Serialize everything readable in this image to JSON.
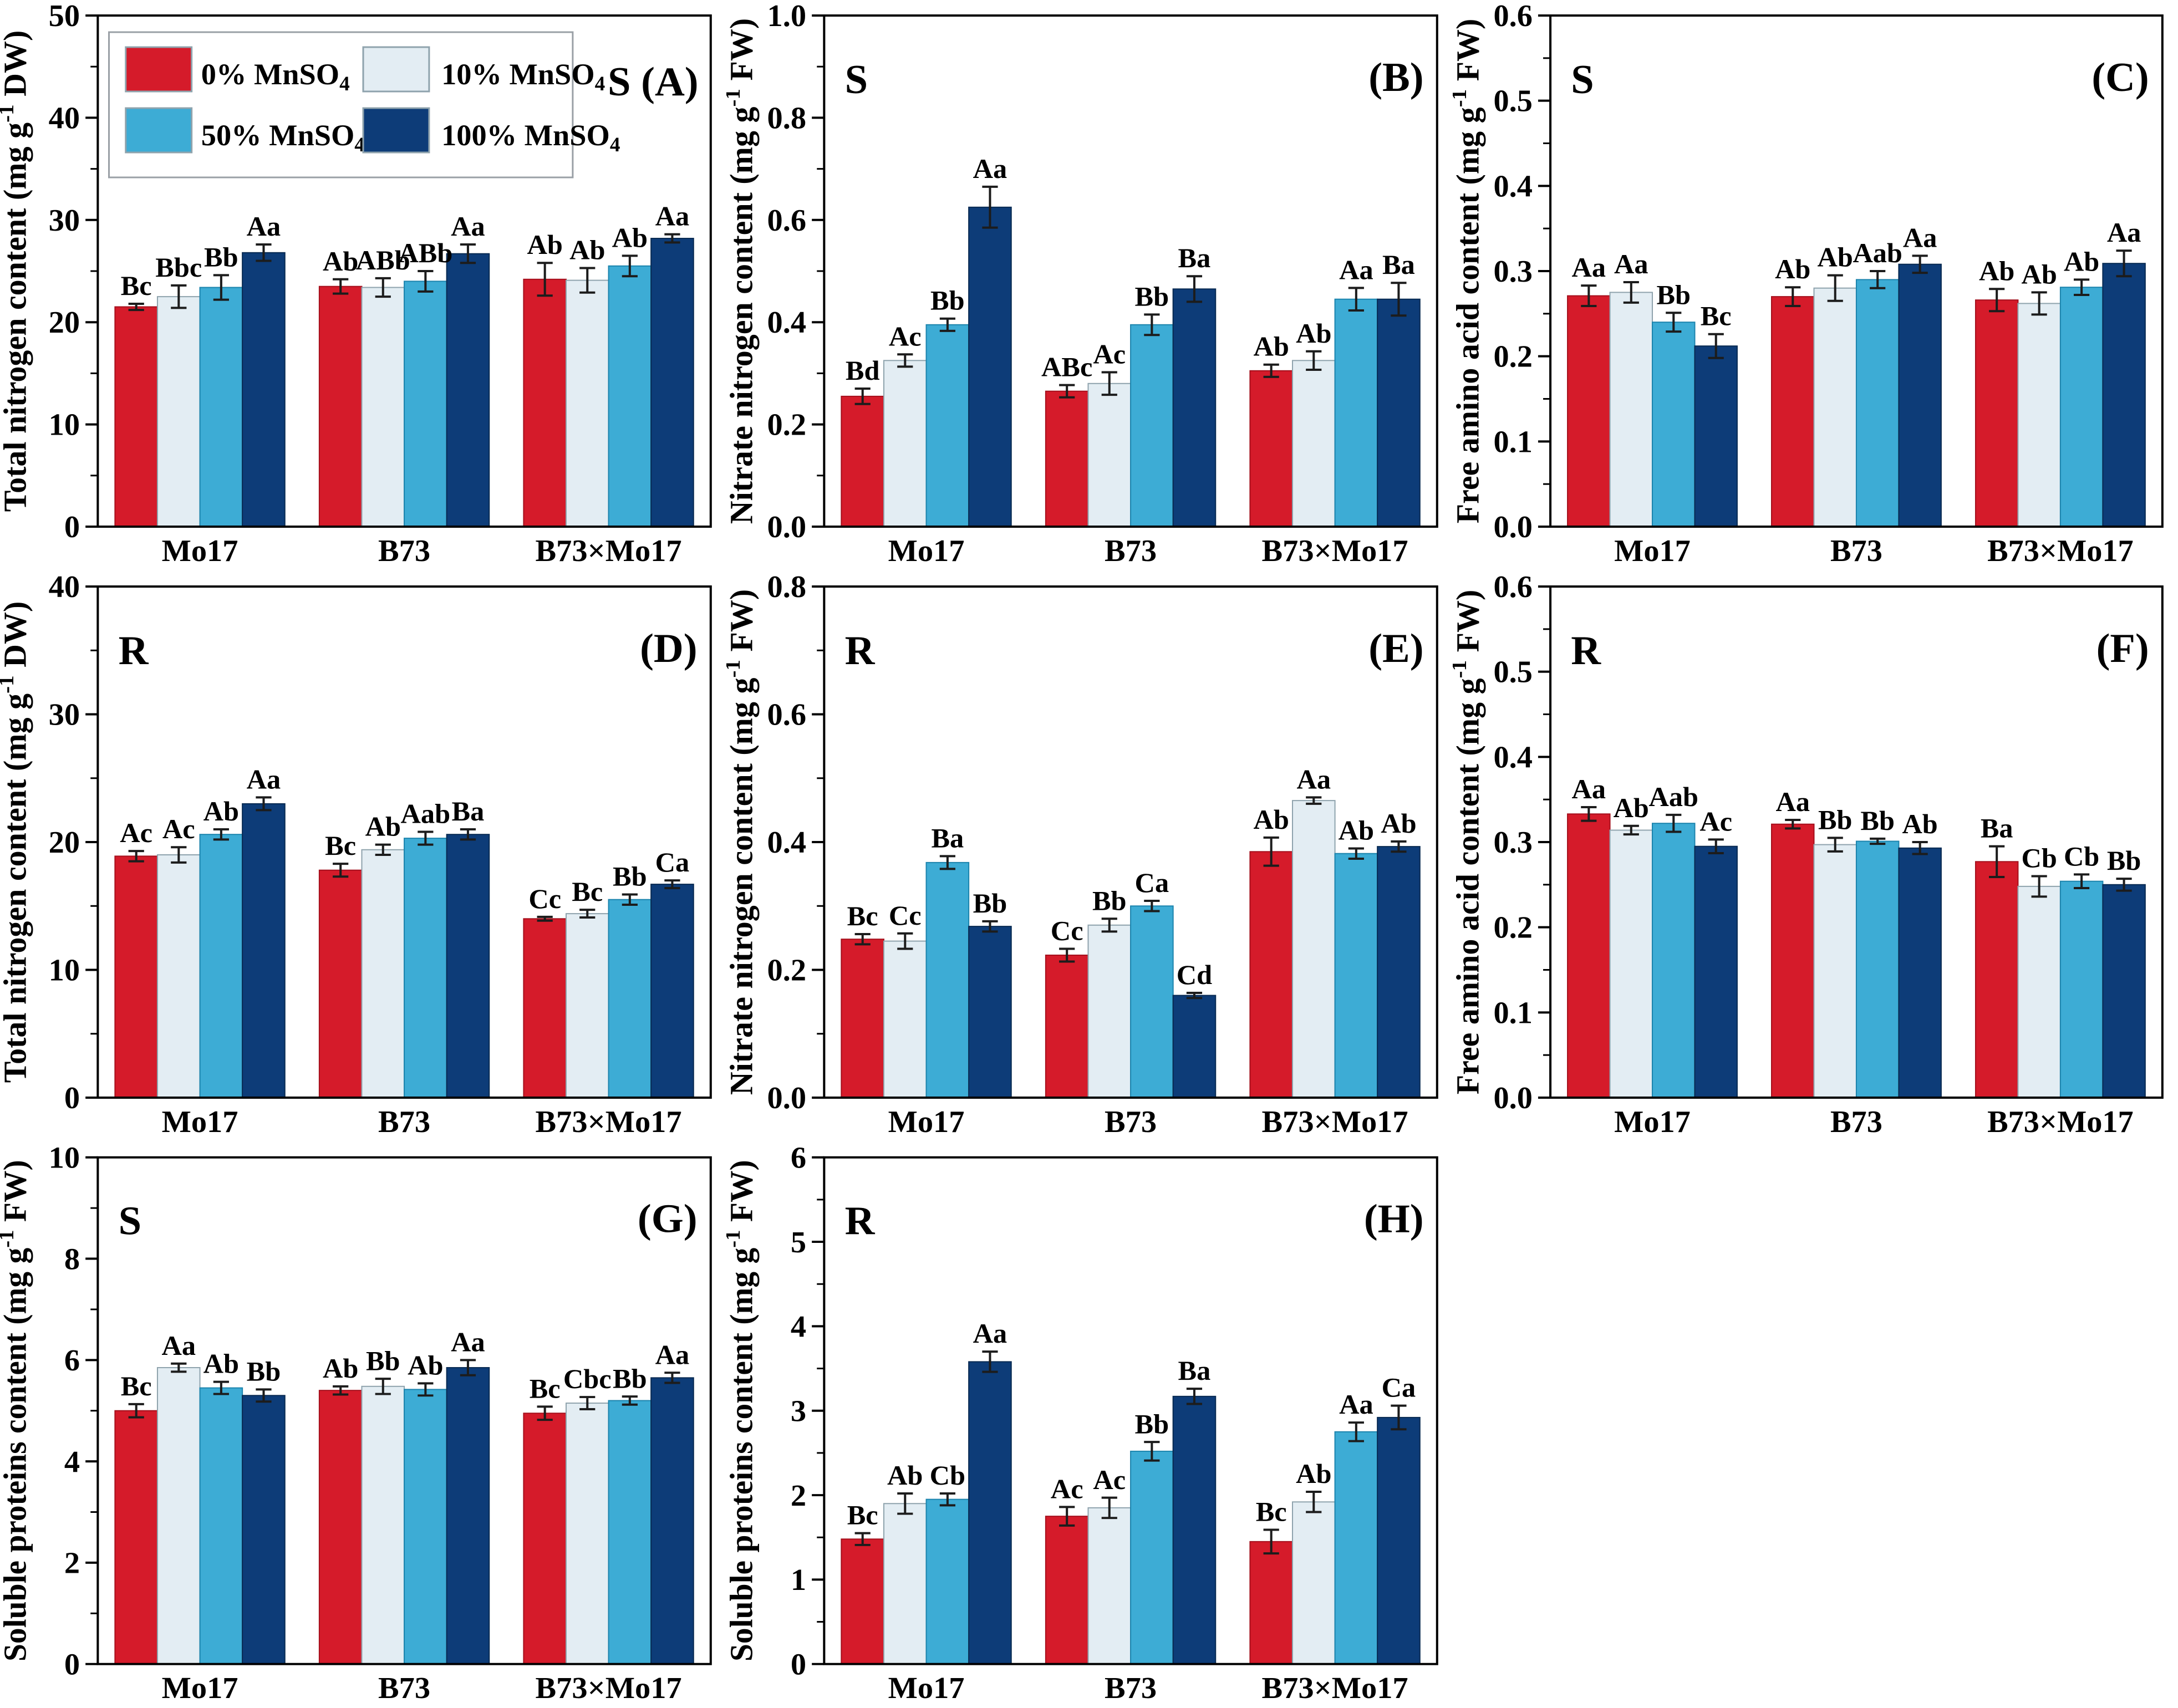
{
  "figure": {
    "background": "#ffffff",
    "bar_colors": [
      "#d51b2a",
      "#e3edf3",
      "#3dacd5",
      "#0d3c78"
    ],
    "bar_edge_colors": [
      "#a50f1c",
      "#8fa3ad",
      "#1c84ad",
      "#082a52"
    ],
    "error_bar_color": "#1c1c1c",
    "axis_color": "#000000",
    "legend": {
      "border_color": "#9aa0a6",
      "items": [
        {
          "label": "0%  MnSO₄",
          "color": "#d51b2a"
        },
        {
          "label": "10%  MnSO₄",
          "color": "#e3edf3"
        },
        {
          "label": "50% MnSO₄",
          "color": "#3dacd5"
        },
        {
          "label": "100% MnSO₄",
          "color": "#0d3c78"
        }
      ]
    }
  },
  "chart_data": {
    "type": "bar",
    "categories": [
      "Mo17",
      "B73",
      "B73×Mo17"
    ],
    "series_names": [
      "0% MnSO₄",
      "10% MnSO₄",
      "50% MnSO₄",
      "100% MnSO₄"
    ],
    "legend_position": "top-left of panel A",
    "panels": [
      {
        "id": "A",
        "tissue": "S",
        "panel_label": "(A)",
        "legend": true,
        "ylabel": "Total nitrogen content (mg g⁻¹ DW)",
        "ylim": [
          0,
          50
        ],
        "ytick_step": 10,
        "ytick_decimals": 0,
        "values": [
          [
            21.5,
            23.5,
            24.2
          ],
          [
            22.5,
            23.4,
            24.1
          ],
          [
            23.4,
            24.0,
            25.5
          ],
          [
            26.8,
            26.7,
            28.2
          ]
        ],
        "errors": [
          [
            0.3,
            0.7,
            1.6
          ],
          [
            1.1,
            0.9,
            1.2
          ],
          [
            1.2,
            1.0,
            1.0
          ],
          [
            0.8,
            0.9,
            0.4
          ]
        ],
        "letters": [
          [
            "Bc",
            "Ab",
            "Ab"
          ],
          [
            "Bbc",
            "ABb",
            "Ab"
          ],
          [
            "Bb",
            "ABb",
            "Ab"
          ],
          [
            "Aa",
            "Aa",
            "Aa"
          ]
        ]
      },
      {
        "id": "B",
        "tissue": "S",
        "panel_label": "(B)",
        "legend": false,
        "ylabel": "Nitrate nitrogen content (mg g⁻¹ FW)",
        "ylim": [
          0,
          1.0
        ],
        "ytick_step": 0.2,
        "ytick_decimals": 1,
        "values": [
          [
            0.255,
            0.265,
            0.305
          ],
          [
            0.325,
            0.28,
            0.325
          ],
          [
            0.395,
            0.395,
            0.445
          ],
          [
            0.625,
            0.465,
            0.445
          ]
        ],
        "errors": [
          [
            0.015,
            0.012,
            0.012
          ],
          [
            0.012,
            0.022,
            0.018
          ],
          [
            0.012,
            0.02,
            0.022
          ],
          [
            0.04,
            0.025,
            0.032
          ]
        ],
        "letters": [
          [
            "Bd",
            "ABc",
            "Ab"
          ],
          [
            "Ac",
            "Ac",
            "Ab"
          ],
          [
            "Bb",
            "Bb",
            "Aa"
          ],
          [
            "Aa",
            "Ba",
            "Ba"
          ]
        ]
      },
      {
        "id": "C",
        "tissue": "S",
        "panel_label": "(C)",
        "legend": false,
        "ylabel": "Free amino acid content (mg g⁻¹ FW)",
        "ylim": [
          0,
          0.6
        ],
        "ytick_step": 0.1,
        "ytick_decimals": 1,
        "values": [
          [
            0.271,
            0.27,
            0.266
          ],
          [
            0.275,
            0.28,
            0.262
          ],
          [
            0.24,
            0.29,
            0.281
          ],
          [
            0.212,
            0.308,
            0.309
          ]
        ],
        "errors": [
          [
            0.012,
            0.011,
            0.013
          ],
          [
            0.012,
            0.015,
            0.013
          ],
          [
            0.011,
            0.01,
            0.009
          ],
          [
            0.014,
            0.01,
            0.015
          ]
        ],
        "letters": [
          [
            "Aa",
            "Ab",
            "Ab"
          ],
          [
            "Aa",
            "Ab",
            "Ab"
          ],
          [
            "Bb",
            "Aab",
            "Ab"
          ],
          [
            "Bc",
            "Aa",
            "Aa"
          ]
        ]
      },
      {
        "id": "D",
        "tissue": "R",
        "panel_label": "(D)",
        "legend": false,
        "ylabel": "Total nitrogen content (mg g⁻¹ DW)",
        "ylim": [
          0,
          40
        ],
        "ytick_step": 10,
        "ytick_decimals": 0,
        "values": [
          [
            18.9,
            17.8,
            14.0
          ],
          [
            19.0,
            19.4,
            14.4
          ],
          [
            20.6,
            20.3,
            15.5
          ],
          [
            23.0,
            20.6,
            16.7
          ]
        ],
        "errors": [
          [
            0.4,
            0.5,
            0.15
          ],
          [
            0.6,
            0.4,
            0.3
          ],
          [
            0.4,
            0.5,
            0.4
          ],
          [
            0.5,
            0.4,
            0.3
          ]
        ],
        "letters": [
          [
            "Ac",
            "Bc",
            "Cc"
          ],
          [
            "Ac",
            "Ab",
            "Bc"
          ],
          [
            "Ab",
            "Aab",
            "Bb"
          ],
          [
            "Aa",
            "Ba",
            "Ca"
          ]
        ]
      },
      {
        "id": "E",
        "tissue": "R",
        "panel_label": "(E)",
        "legend": false,
        "ylabel": "Nitrate nitrogen content (mg g⁻¹ FW)",
        "ylim": [
          0,
          0.8
        ],
        "ytick_step": 0.2,
        "ytick_decimals": 1,
        "values": [
          [
            0.248,
            0.223,
            0.385
          ],
          [
            0.245,
            0.27,
            0.465
          ],
          [
            0.368,
            0.3,
            0.382
          ],
          [
            0.268,
            0.16,
            0.393
          ]
        ],
        "errors": [
          [
            0.008,
            0.01,
            0.022
          ],
          [
            0.012,
            0.01,
            0.005
          ],
          [
            0.01,
            0.008,
            0.008
          ],
          [
            0.008,
            0.004,
            0.008
          ]
        ],
        "letters": [
          [
            "Bc",
            "Cc",
            "Ab"
          ],
          [
            "Cc",
            "Bb",
            "Aa"
          ],
          [
            "Ba",
            "Ca",
            "Ab"
          ],
          [
            "Bb",
            "Cd",
            "Ab"
          ]
        ]
      },
      {
        "id": "F",
        "tissue": "R",
        "panel_label": "(F)",
        "legend": false,
        "ylabel": "Free amino acid content (mg g⁻¹ FW)",
        "ylim": [
          0,
          0.6
        ],
        "ytick_step": 0.1,
        "ytick_decimals": 1,
        "values": [
          [
            0.333,
            0.321,
            0.277
          ],
          [
            0.314,
            0.297,
            0.248
          ],
          [
            0.322,
            0.301,
            0.254
          ],
          [
            0.295,
            0.293,
            0.25
          ]
        ],
        "errors": [
          [
            0.008,
            0.005,
            0.018
          ],
          [
            0.005,
            0.008,
            0.012
          ],
          [
            0.01,
            0.003,
            0.008
          ],
          [
            0.008,
            0.007,
            0.007
          ]
        ],
        "letters": [
          [
            "Aa",
            "Aa",
            "Ba"
          ],
          [
            "Ab",
            "Bb",
            "Cb"
          ],
          [
            "Aab",
            "Bb",
            "Cb"
          ],
          [
            "Ac",
            "Ab",
            "Bb"
          ]
        ]
      },
      {
        "id": "G",
        "tissue": "S",
        "panel_label": "(G)",
        "legend": false,
        "ylabel": "Soluble proteins content  (mg g⁻¹ FW)",
        "ylim": [
          0,
          10
        ],
        "ytick_step": 2,
        "ytick_decimals": 0,
        "values": [
          [
            5.0,
            5.4,
            4.95
          ],
          [
            5.85,
            5.48,
            5.15
          ],
          [
            5.45,
            5.42,
            5.2
          ],
          [
            5.3,
            5.85,
            5.65
          ]
        ],
        "errors": [
          [
            0.13,
            0.08,
            0.13
          ],
          [
            0.08,
            0.15,
            0.12
          ],
          [
            0.12,
            0.12,
            0.08
          ],
          [
            0.12,
            0.15,
            0.1
          ]
        ],
        "letters": [
          [
            "Bc",
            "Ab",
            "Bc"
          ],
          [
            "Aa",
            "Bb",
            "Cbc"
          ],
          [
            "Ab",
            "Ab",
            "Bb"
          ],
          [
            "Bb",
            "Aa",
            "Aa"
          ]
        ]
      },
      {
        "id": "H",
        "tissue": "R",
        "panel_label": "(H)",
        "legend": false,
        "ylabel": "Soluble proteins content  (mg g⁻¹ FW)",
        "ylim": [
          0,
          6
        ],
        "ytick_step": 1,
        "ytick_decimals": 0,
        "values": [
          [
            1.48,
            1.75,
            1.45
          ],
          [
            1.9,
            1.85,
            1.92
          ],
          [
            1.95,
            2.52,
            2.75
          ],
          [
            3.58,
            3.17,
            2.92
          ]
        ],
        "errors": [
          [
            0.07,
            0.11,
            0.14
          ],
          [
            0.12,
            0.12,
            0.12
          ],
          [
            0.07,
            0.11,
            0.11
          ],
          [
            0.12,
            0.09,
            0.14
          ]
        ],
        "letters": [
          [
            "Bc",
            "Ac",
            "Bc"
          ],
          [
            "Ab",
            "Ac",
            "Ab"
          ],
          [
            "Cb",
            "Bb",
            "Aa"
          ],
          [
            "Aa",
            "Ba",
            "Ca"
          ]
        ]
      }
    ]
  }
}
